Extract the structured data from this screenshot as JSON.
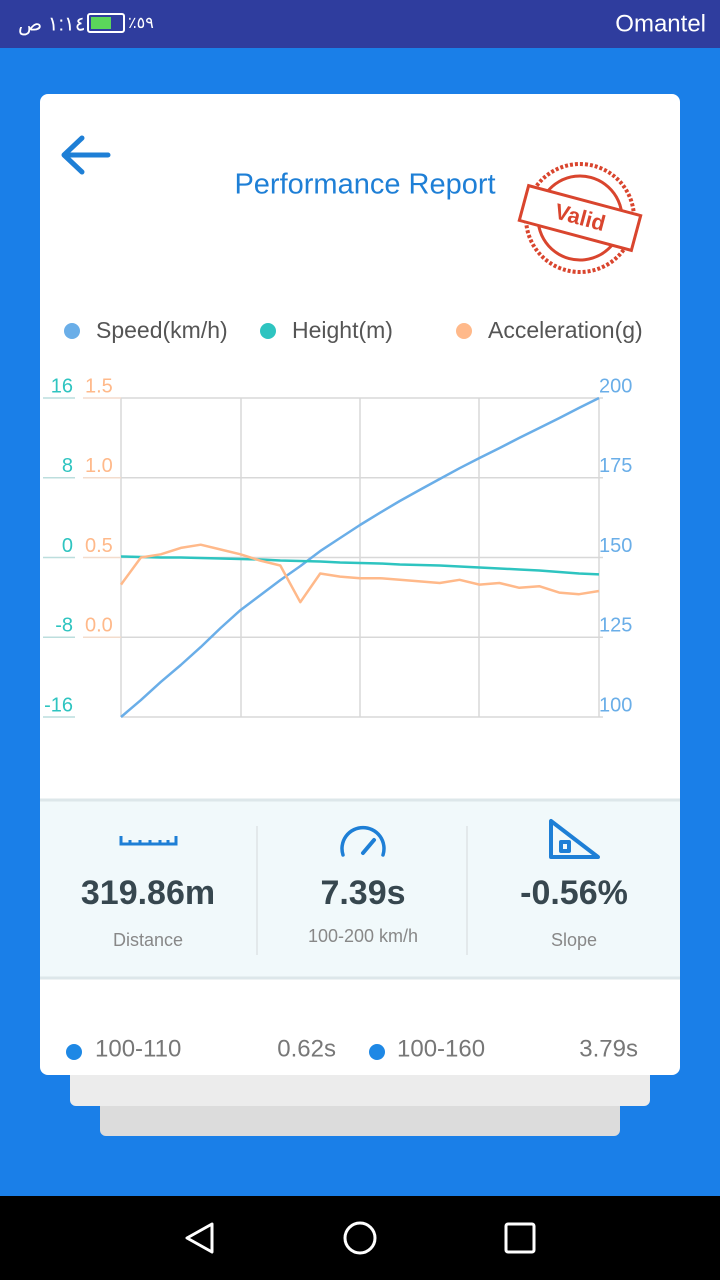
{
  "status_bar": {
    "time": "١:١٤ ص",
    "battery": "٪٥٩",
    "carrier": "Omantel"
  },
  "header": {
    "title": "Performance Report",
    "stamp": "Valid"
  },
  "chart_data": {
    "type": "line",
    "series": [
      {
        "name": "Speed(km/h)",
        "color": "#6aaee8",
        "axis": "y2",
        "values": [
          100,
          105.3,
          111,
          116.3,
          121.9,
          127.9,
          133.5,
          138.2,
          142.9,
          147.3,
          152,
          156.1,
          160.2,
          164,
          167.7,
          171.2,
          174.6,
          178,
          181.2,
          184.3,
          187.5,
          190.6,
          193.7,
          196.9,
          200
        ]
      },
      {
        "name": "Height(m)",
        "color": "#2ec4c0",
        "axis": "y",
        "values": [
          0.1,
          0.05,
          0,
          0,
          -0.05,
          -0.1,
          -0.15,
          -0.2,
          -0.3,
          -0.35,
          -0.4,
          -0.5,
          -0.55,
          -0.6,
          -0.7,
          -0.75,
          -0.8,
          -0.9,
          -1.0,
          -1.1,
          -1.2,
          -1.3,
          -1.45,
          -1.6,
          -1.7
        ]
      },
      {
        "name": "Acceleration(g)",
        "color": "#ffb98a",
        "axis": "y3",
        "values": [
          0.33,
          0.5,
          0.52,
          0.56,
          0.58,
          0.55,
          0.52,
          0.48,
          0.45,
          0.22,
          0.4,
          0.38,
          0.37,
          0.37,
          0.36,
          0.35,
          0.34,
          0.36,
          0.33,
          0.34,
          0.31,
          0.32,
          0.28,
          0.27,
          0.29
        ]
      }
    ],
    "ylim": [
      -16,
      16
    ],
    "yticks": [
      16,
      8,
      0,
      -8,
      -16
    ],
    "y2lim": [
      100,
      200
    ],
    "y2ticks": [
      200,
      175,
      150,
      125,
      100
    ],
    "y3lim": [
      -0.5,
      1.5
    ],
    "y3ticks": [
      1.5,
      {
        "value": 1,
        "label": "1.0"
      },
      0.5,
      {
        "value": 0,
        "label": "0.0"
      }
    ],
    "grid": true
  },
  "stats": [
    {
      "value": "319.86m",
      "label": "Distance"
    },
    {
      "value": "7.39s",
      "label": "100-200 km/h"
    },
    {
      "value": "-0.56%",
      "label": "Slope"
    }
  ],
  "splits": [
    {
      "range": "100-110",
      "time": "0.62s"
    },
    {
      "range": "100-160",
      "time": "3.79s"
    }
  ]
}
